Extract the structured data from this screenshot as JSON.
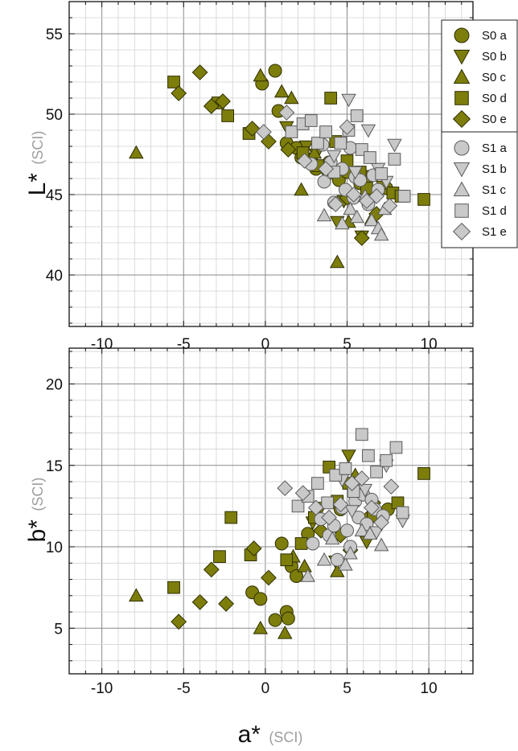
{
  "colors": {
    "s0_fill": "#7d7d0c",
    "s0_edge": "#2e2e00",
    "s1_fill": "#c9c9c9",
    "s1_edge": "#5a5a5a",
    "unit_text": "#9e9e9e"
  },
  "chart_data": [
    {
      "type": "scatter",
      "title": "",
      "xlabel": "",
      "ylabel": "L*",
      "ylabel_unit": "(SCI)",
      "xlim": [
        -12,
        12.7
      ],
      "ylim": [
        36.8,
        57
      ],
      "x_ticks": [
        "-10",
        "-5",
        "0",
        "5",
        "10"
      ],
      "y_ticks": [
        "40",
        "45",
        "50",
        "55"
      ],
      "grid": true,
      "x_tick_labels_position": "bottom",
      "legend_position": "top-right",
      "legend_groups": [
        [
          "S0 a",
          "S0 b",
          "S0 c",
          "S0 d",
          "S0 e"
        ],
        [
          "S1 a",
          "S1 b",
          "S1 c",
          "S1 d",
          "S1 e"
        ]
      ],
      "series": [
        {
          "name": "S0 a",
          "marker": "circle",
          "group": "S0",
          "x": [
            0.6,
            -0.2,
            0.8,
            1.3,
            1.9,
            2.2,
            2.6,
            3.1,
            3.9,
            4.5,
            5.0,
            5.8,
            6.3,
            7.4
          ],
          "y": [
            52.7,
            51.9,
            50.2,
            48.2,
            47.9,
            47.3,
            47.2,
            46.6,
            47.0,
            45.9,
            46.4,
            45.7,
            46.1,
            45.4
          ]
        },
        {
          "name": "S0 b",
          "marker": "triangle-down",
          "group": "S0",
          "x": [
            1.3,
            2.5,
            3.1,
            4.4,
            4.8,
            5.9,
            6.5,
            7.2
          ],
          "y": [
            49.2,
            48.0,
            47.5,
            43.3,
            44.6,
            42.4,
            44.9,
            45.5
          ]
        },
        {
          "name": "S0 c",
          "marker": "triangle-up",
          "group": "S0",
          "x": [
            -7.9,
            -0.3,
            1.0,
            1.6,
            2.2,
            3.0,
            4.4,
            5.1,
            6.5
          ],
          "y": [
            47.6,
            52.4,
            51.4,
            51.0,
            45.3,
            47.6,
            40.8,
            43.3,
            43.5
          ]
        },
        {
          "name": "S0 d",
          "marker": "square",
          "group": "S0",
          "x": [
            -5.6,
            -2.9,
            -2.3,
            -1.0,
            2.3,
            3.2,
            4.0,
            4.3,
            5.0,
            5.8,
            6.2,
            7.8,
            8.3,
            9.7
          ],
          "y": [
            52.0,
            50.7,
            49.9,
            48.8,
            47.6,
            46.8,
            51.0,
            48.3,
            47.1,
            46.4,
            45.4,
            45.1,
            44.9,
            44.7
          ]
        },
        {
          "name": "S0 e",
          "marker": "diamond",
          "group": "S0",
          "x": [
            -5.3,
            -4.0,
            -3.3,
            -2.6,
            -0.8,
            0.2,
            1.4,
            3.9,
            5.0,
            5.9,
            6.8
          ],
          "y": [
            51.3,
            52.6,
            50.5,
            50.8,
            49.1,
            48.3,
            47.8,
            46.3,
            44.8,
            42.3,
            43.8
          ]
        },
        {
          "name": "S1 a",
          "marker": "circle",
          "group": "S1",
          "x": [
            2.8,
            3.5,
            3.6,
            4.0,
            4.2,
            4.7,
            4.9,
            5.2,
            5.4,
            5.5,
            5.8,
            6.3,
            6.6,
            6.9
          ],
          "y": [
            46.9,
            48.1,
            45.8,
            47.0,
            44.5,
            46.6,
            45.3,
            47.9,
            44.8,
            46.1,
            45.9,
            44.4,
            46.2,
            45.3
          ]
        },
        {
          "name": "S1 b",
          "marker": "triangle-down",
          "group": "S1",
          "x": [
            5.1,
            4.2,
            5.5,
            6.3,
            6.9,
            7.4,
            7.9
          ],
          "y": [
            50.9,
            47.4,
            46.4,
            49.0,
            46.6,
            45.8,
            48.1
          ]
        },
        {
          "name": "S1 c",
          "marker": "triangle-up",
          "group": "S1",
          "x": [
            3.6,
            4.7,
            5.2,
            5.6,
            6.1,
            6.5,
            6.9,
            7.1,
            7.3
          ],
          "y": [
            43.7,
            43.2,
            44.1,
            43.6,
            44.9,
            43.4,
            42.9,
            42.5,
            44.1
          ]
        },
        {
          "name": "S1 d",
          "marker": "square",
          "group": "S1",
          "x": [
            1.6,
            2.3,
            2.8,
            3.2,
            3.7,
            4.2,
            4.6,
            5.1,
            5.6,
            5.9,
            6.4,
            7.1,
            7.9,
            8.5
          ],
          "y": [
            48.9,
            49.4,
            49.6,
            48.2,
            48.9,
            46.4,
            48.2,
            49.0,
            49.9,
            47.8,
            47.3,
            46.3,
            47.2,
            44.9
          ]
        },
        {
          "name": "S1 e",
          "marker": "diamond",
          "group": "S1",
          "x": [
            -0.1,
            1.3,
            2.4,
            3.7,
            4.3,
            5.0,
            5.4,
            6.2,
            6.8,
            7.6
          ],
          "y": [
            48.9,
            50.1,
            47.1,
            46.6,
            44.4,
            49.2,
            45.0,
            44.6,
            44.9,
            44.3
          ]
        }
      ]
    },
    {
      "type": "scatter",
      "title": "",
      "xlabel": "a*",
      "xlabel_unit": "(SCI)",
      "ylabel": "b*",
      "ylabel_unit": "(SCI)",
      "xlim": [
        -12,
        12.7
      ],
      "ylim": [
        2.2,
        22.2
      ],
      "x_ticks": [
        "-10",
        "-5",
        "0",
        "5",
        "10"
      ],
      "y_ticks": [
        "5",
        "10",
        "15",
        "20"
      ],
      "grid": true,
      "series": [
        {
          "name": "S0 a",
          "marker": "circle",
          "group": "S0",
          "x": [
            -0.8,
            -0.3,
            0.6,
            1.0,
            1.3,
            1.4,
            1.6,
            1.9,
            2.6,
            4.6,
            5.6,
            6.4,
            7.5
          ],
          "y": [
            7.2,
            6.8,
            5.5,
            10.2,
            6.0,
            5.6,
            8.8,
            8.2,
            10.8,
            12.3,
            13.8,
            11.8,
            12.3
          ]
        },
        {
          "name": "S0 b",
          "marker": "triangle-down",
          "group": "S0",
          "x": [
            2.9,
            3.4,
            4.3,
            5.1,
            6.2,
            7.1
          ],
          "y": [
            11.5,
            12.4,
            9.1,
            15.6,
            10.3,
            11.4
          ]
        },
        {
          "name": "S0 c",
          "marker": "triangle-up",
          "group": "S0",
          "x": [
            -7.9,
            -0.3,
            1.2,
            1.7,
            2.4,
            4.4,
            5.5
          ],
          "y": [
            7.0,
            5.0,
            4.7,
            9.4,
            8.8,
            8.5,
            14.4
          ]
        },
        {
          "name": "S0 d",
          "marker": "square",
          "group": "S0",
          "x": [
            -5.6,
            -2.8,
            -2.1,
            -0.9,
            1.3,
            2.2,
            3.0,
            3.9,
            4.4,
            5.1,
            6.6,
            8.1,
            9.7
          ],
          "y": [
            7.5,
            9.4,
            11.8,
            9.5,
            9.2,
            10.2,
            11.8,
            14.9,
            12.8,
            13.9,
            11.9,
            12.7,
            14.5
          ]
        },
        {
          "name": "S0 e",
          "marker": "diamond",
          "group": "S0",
          "x": [
            -5.3,
            -4.0,
            -3.3,
            -2.4,
            -0.7,
            0.2,
            3.4,
            4.6,
            5.2,
            6.6
          ],
          "y": [
            5.4,
            6.6,
            8.6,
            6.5,
            9.9,
            8.1,
            11.0,
            10.7,
            9.8,
            12.7
          ]
        },
        {
          "name": "S1 a",
          "marker": "circle",
          "group": "S1",
          "x": [
            2.9,
            3.4,
            3.9,
            4.2,
            4.4,
            4.7,
            5.0,
            5.2,
            5.5,
            5.7,
            6.0,
            6.2,
            6.5,
            6.7,
            7.2
          ],
          "y": [
            10.2,
            11.7,
            10.7,
            11.3,
            9.2,
            12.4,
            11.0,
            10.0,
            12.8,
            11.8,
            13.2,
            11.4,
            12.9,
            12.3,
            11.9
          ]
        },
        {
          "name": "S1 b",
          "marker": "triangle-down",
          "group": "S1",
          "x": [
            4.7,
            5.3,
            6.1,
            6.8,
            7.4,
            8.4
          ],
          "y": [
            14.1,
            12.2,
            13.5,
            10.9,
            15.0,
            11.6
          ]
        },
        {
          "name": "S1 c",
          "marker": "triangle-up",
          "group": "S1",
          "x": [
            2.6,
            3.6,
            4.1,
            4.9,
            5.2,
            5.9,
            6.4,
            7.1
          ],
          "y": [
            8.2,
            9.2,
            10.5,
            8.9,
            9.6,
            11.0,
            10.8,
            10.1
          ]
        },
        {
          "name": "S1 d",
          "marker": "square",
          "group": "S1",
          "x": [
            2.0,
            2.6,
            3.2,
            3.8,
            4.3,
            4.9,
            5.4,
            5.9,
            6.3,
            6.8,
            7.4,
            8.0,
            8.4
          ],
          "y": [
            12.5,
            13.1,
            13.9,
            12.7,
            14.4,
            14.8,
            13.4,
            16.9,
            15.6,
            14.6,
            15.3,
            16.1,
            12.1
          ]
        },
        {
          "name": "S1 e",
          "marker": "diamond",
          "group": "S1",
          "x": [
            1.2,
            2.3,
            3.1,
            3.9,
            4.6,
            5.3,
            5.9,
            6.5,
            7.1,
            7.7
          ],
          "y": [
            13.6,
            13.3,
            12.4,
            11.8,
            12.6,
            13.9,
            14.2,
            12.4,
            11.5,
            13.7
          ]
        }
      ]
    }
  ]
}
